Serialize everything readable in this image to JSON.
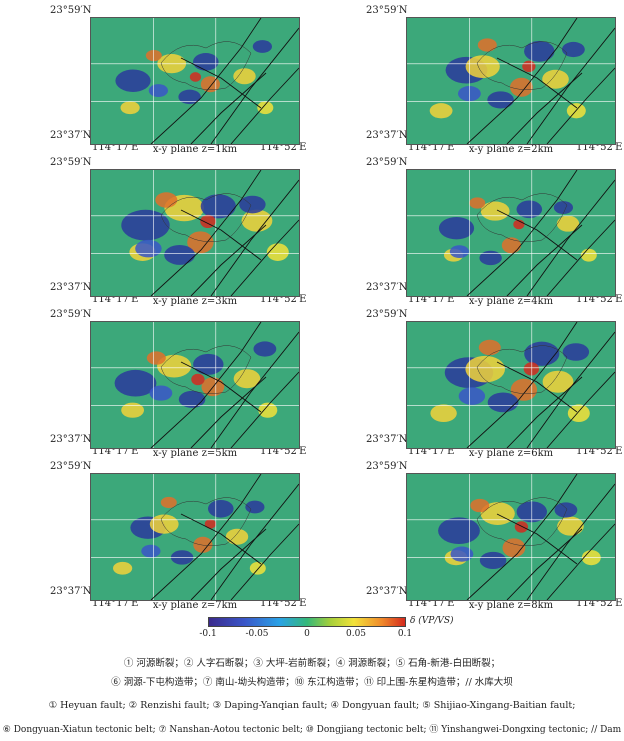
{
  "panels": [
    {
      "caption": "x-y plane  z=1km",
      "top_lat": "23°59′N",
      "bottom_lat": "23°37′N",
      "left_lon": "114°17′E",
      "right_lon": "114°52′E"
    },
    {
      "caption": "x-y plane  z=2km",
      "top_lat": "23°59′N",
      "bottom_lat": "23°37′N",
      "left_lon": "114°17′E",
      "right_lon": "114°52′E"
    },
    {
      "caption": "x-y plane  z=3km",
      "top_lat": "23°59′N",
      "bottom_lat": "23°37′N",
      "left_lon": "114°17′E",
      "right_lon": "114°52′E"
    },
    {
      "caption": "x-y plane  z=4km",
      "top_lat": "23°59′N",
      "bottom_lat": "23°37′N",
      "left_lon": "114°17′E",
      "right_lon": "114°52′E"
    },
    {
      "caption": "x-y plane  z=5km",
      "top_lat": "23°59′N",
      "bottom_lat": "23°37′N",
      "left_lon": "114°17′E",
      "right_lon": "114°52′E"
    },
    {
      "caption": "x-y plane  z=6km",
      "top_lat": "23°59′N",
      "bottom_lat": "23°37′N",
      "left_lon": "114°17′E",
      "right_lon": "114°52′E"
    },
    {
      "caption": "x-y plane  z=7km",
      "top_lat": "23°59′N",
      "bottom_lat": "23°37′N",
      "left_lon": "114°17′E",
      "right_lon": "114°52′E"
    },
    {
      "caption": "x-y plane  z=8km",
      "top_lat": "23°59′N",
      "bottom_lat": "23°37′N",
      "left_lon": "114°17′E",
      "right_lon": "114°52′E"
    }
  ],
  "colorbar": {
    "ticks": [
      "-0.1",
      "-0.05",
      "0",
      "0.05",
      "0.1"
    ],
    "unit": "δ (VP/VS)"
  },
  "legend": {
    "cn_line1": "① 河源断裂；② 人字石断裂；③ 大坪-岩前断裂；④ 洞源断裂；⑤ 石角-新港-白田断裂；",
    "cn_line2": "⑥ 洞源-下屯构造带；⑦ 南山-坳头构造带；⑩ 东江构造带；⑪ 印上围-东星构造带；// 水库大坝",
    "en_line1": "① Heyuan fault;  ② Renzishi fault;  ③ Daping-Yanqian fault;  ④ Dongyuan fault;  ⑤ Shijiao-Xingang-Baitian fault;",
    "en_line2": "⑥ Dongyuan-Xiatun tectonic belt;  ⑦ Nanshan-Aotou tectonic belt;  ⑩ Dongjiang tectonic belt;  ⑪ Yinshangwei-Dongxing tectonic;  // Dam"
  },
  "chart_data": {
    "type": "heatmap",
    "title": "",
    "xlabel": "",
    "ylabel": "",
    "lon_range": [
      "114°17′E",
      "114°52′E"
    ],
    "lat_range": [
      "23°37′N",
      "23°59′N"
    ],
    "depths_km": [
      1,
      2,
      3,
      4,
      5,
      6,
      7,
      8
    ],
    "color_range": [
      -0.1,
      0.1
    ],
    "colorbar_ticks": [
      -0.1,
      -0.05,
      0,
      0.05,
      0.1
    ]
  }
}
